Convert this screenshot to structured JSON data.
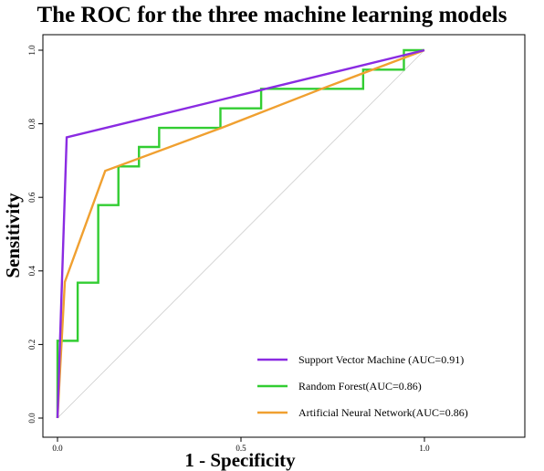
{
  "chart_data": {
    "type": "line",
    "title": "The ROC for the three machine learning models",
    "xlabel": "1 - Specificity",
    "ylabel": "Sensitivity",
    "xlim": [
      0,
      1
    ],
    "ylim": [
      0,
      1
    ],
    "x_ticks": [
      "0.0",
      "0.5",
      "1.0"
    ],
    "y_ticks": [
      "0.0",
      "0.2",
      "0.4",
      "0.6",
      "0.8",
      "1.0"
    ],
    "grid": false,
    "legend_position": "bottom-right",
    "reference_line": {
      "x": [
        0,
        1
      ],
      "y": [
        0,
        1
      ],
      "color": "#cccccc"
    },
    "series": [
      {
        "name": "Support Vector Machine (AUC=0.91)",
        "color": "#8a2be2",
        "x": [
          0,
          0.025,
          1
        ],
        "y": [
          0,
          0.763,
          1
        ]
      },
      {
        "name": "Random Forest(AUC=0.86)",
        "color": "#32cd32",
        "x": [
          0,
          0,
          0.055,
          0.055,
          0.111,
          0.111,
          0.166,
          0.166,
          0.222,
          0.222,
          0.277,
          0.277,
          0.444,
          0.444,
          0.555,
          0.555,
          0.833,
          0.833,
          0.944,
          0.944,
          1
        ],
        "y": [
          0,
          0.21,
          0.21,
          0.368,
          0.368,
          0.579,
          0.579,
          0.684,
          0.684,
          0.737,
          0.737,
          0.789,
          0.789,
          0.842,
          0.842,
          0.895,
          0.895,
          0.947,
          0.947,
          1,
          1
        ]
      },
      {
        "name": "Artificial Neural Network(AUC=0.86)",
        "color": "#f0a030",
        "x": [
          0,
          0.02,
          0.13,
          0.45,
          0.72,
          1
        ],
        "y": [
          0,
          0.37,
          0.672,
          0.79,
          0.895,
          1
        ]
      }
    ]
  }
}
